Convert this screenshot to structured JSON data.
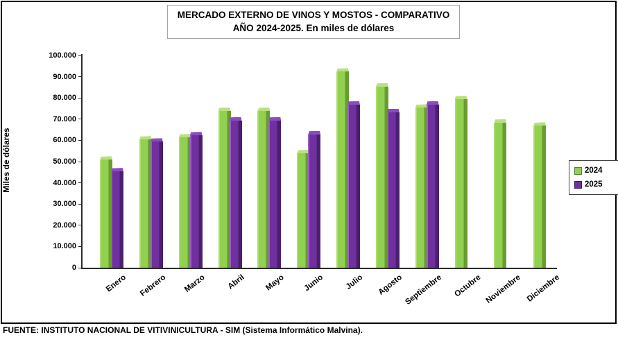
{
  "chart_data": {
    "type": "bar",
    "title": "MERCADO EXTERNO DE VINOS Y MOSTOS - COMPARATIVO",
    "subtitle": "AÑO 2024-2025. En miles de dólares",
    "ylabel": "Miles de dólares",
    "ylim": [
      0,
      100000
    ],
    "ytick_step": 10000,
    "ytick_labels": [
      "0",
      "10.000",
      "20.000",
      "30.000",
      "40.000",
      "50.000",
      "60.000",
      "70.000",
      "80.000",
      "90.000",
      "100.000"
    ],
    "grid": false,
    "legend_position": "right",
    "categories": [
      "Enero",
      "Febrero",
      "Marzo",
      "Abril",
      "Mayo",
      "Junio",
      "Julio",
      "Agosto",
      "Septiembre",
      "Octubre",
      "Noviembre",
      "Diciembre"
    ],
    "series": [
      {
        "name": "2024",
        "values": [
          52500,
          62000,
          63000,
          75500,
          75500,
          55500,
          94000,
          87000,
          77000,
          81000,
          70000,
          68500
        ]
      },
      {
        "name": "2025",
        "values": [
          47000,
          61000,
          64000,
          71000,
          71000,
          64500,
          78500,
          75000,
          78500,
          null,
          null,
          null
        ]
      }
    ]
  },
  "footer": {
    "source_text": "FUENTE: INSTITUTO NACIONAL DE VITIVINICULTURA - SIM (Sistema Informático Malvina)."
  },
  "colors": {
    "series_2024": {
      "main": "#92d050",
      "light": "#aedc6e",
      "dark": "#699c30",
      "cap": "#b9e07f",
      "swatch_border": "#538135"
    },
    "series_2025": {
      "main": "#7030a0",
      "light": "#9a5fc6",
      "dark": "#4b1f70",
      "cap": "#8b4dbb",
      "swatch_border": "#3f1d5a"
    },
    "axis": "#2b2b2b"
  }
}
